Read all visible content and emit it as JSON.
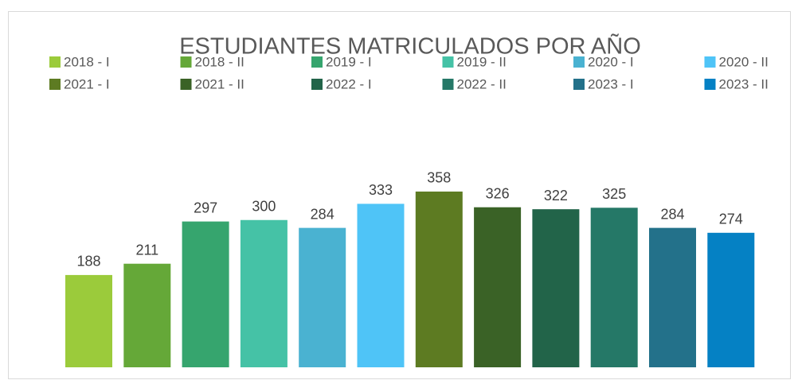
{
  "chart_data": {
    "type": "bar",
    "title": "ESTUDIANTES MATRICULADOS POR AÑO",
    "series": [
      {
        "name": "2018 - I",
        "color": "#9BCB3B",
        "values": [
          188
        ]
      },
      {
        "name": "2018 - II",
        "color": "#65A838",
        "values": [
          211
        ]
      },
      {
        "name": "2019 - I",
        "color": "#36A56E",
        "values": [
          297
        ]
      },
      {
        "name": "2019 - II",
        "color": "#45C2A6",
        "values": [
          300
        ]
      },
      {
        "name": "2020 - I",
        "color": "#4AB2D1",
        "values": [
          284
        ]
      },
      {
        "name": "2020 - II",
        "color": "#4FC4F7",
        "values": [
          333
        ]
      },
      {
        "name": "2021 - I",
        "color": "#5D7B22",
        "values": [
          358
        ]
      },
      {
        "name": "2021 - II",
        "color": "#3A6226",
        "values": [
          326
        ]
      },
      {
        "name": "2022 - I",
        "color": "#226449",
        "values": [
          322
        ]
      },
      {
        "name": "2022 - II",
        "color": "#257867",
        "values": [
          325
        ]
      },
      {
        "name": "2023 - I",
        "color": "#23718A",
        "values": [
          284
        ]
      },
      {
        "name": "2023 - II",
        "color": "#0581C4",
        "values": [
          274
        ]
      }
    ],
    "ylim": [
      0,
      400
    ],
    "legend": "top"
  }
}
